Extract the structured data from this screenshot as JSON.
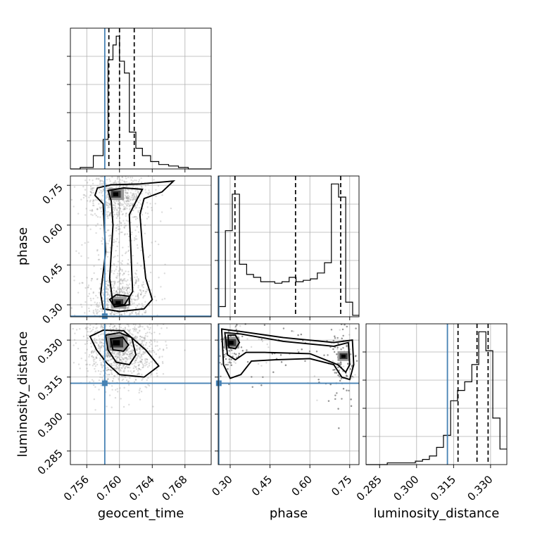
{
  "chart_data": {
    "type": "corner",
    "parameters": [
      "geocent_time",
      "phase",
      "luminosity_distance"
    ],
    "axis_labels": {
      "geocent_time": "geocent_time",
      "phase": "phase",
      "luminosity_distance": "luminosity_distance"
    },
    "ranges": {
      "geocent_time": [
        0.754,
        0.7712
      ],
      "phase": [
        0.255,
        0.785
      ],
      "luminosity_distance": [
        0.2795,
        0.3366
      ]
    },
    "ticks": {
      "geocent_time": [
        0.756,
        0.76,
        0.764,
        0.768
      ],
      "phase": [
        0.3,
        0.45,
        0.6,
        0.75
      ],
      "luminosity_distance": [
        0.285,
        0.3,
        0.315,
        0.33
      ]
    },
    "tick_labels": {
      "geocent_time": [
        "0.756",
        "0.760",
        "0.764",
        "0.768"
      ],
      "phase": [
        "0.30",
        "0.45",
        "0.60",
        "0.75"
      ],
      "luminosity_distance": [
        "0.285",
        "0.300",
        "0.315",
        "0.330"
      ]
    },
    "truths": {
      "geocent_time": 0.7582,
      "phase": 0.2571,
      "luminosity_distance": 0.3125
    },
    "quantiles": {
      "geocent_time": [
        0.7587,
        0.76,
        0.7618
      ],
      "phase": [
        0.318,
        0.546,
        0.716
      ],
      "luminosity_distance": [
        0.3168,
        0.3245,
        0.329
      ]
    },
    "histograms": {
      "geocent_time": {
        "bin_edges": [
          0.754,
          0.7552,
          0.7568,
          0.758,
          0.7586,
          0.7592,
          0.7596,
          0.76,
          0.7606,
          0.7612,
          0.762,
          0.7628,
          0.7638,
          0.7648,
          0.766,
          0.7672,
          0.7684,
          0.7696,
          0.7712
        ],
        "counts": [
          0,
          1,
          9,
          20,
          74,
          84,
          90,
          73,
          65,
          25,
          14,
          9,
          5,
          3,
          2,
          1,
          0,
          0
        ]
      },
      "phase": {
        "bin_edges": [
          0.255,
          0.282,
          0.308,
          0.335,
          0.362,
          0.388,
          0.415,
          0.442,
          0.468,
          0.495,
          0.522,
          0.548,
          0.575,
          0.602,
          0.628,
          0.655,
          0.681,
          0.708,
          0.735,
          0.761,
          0.785
        ],
        "counts": [
          7,
          59,
          84,
          36,
          29,
          27,
          24,
          24,
          23,
          24,
          27,
          24,
          25,
          26,
          30,
          37,
          91,
          82,
          10,
          1
        ]
      },
      "luminosity_distance": {
        "bin_edges": [
          0.2795,
          0.2824,
          0.2852,
          0.2881,
          0.2909,
          0.2938,
          0.2966,
          0.2995,
          0.3024,
          0.3052,
          0.3081,
          0.3109,
          0.3138,
          0.3166,
          0.3195,
          0.3224,
          0.3252,
          0.3281,
          0.3309,
          0.3338,
          0.3366
        ],
        "counts": [
          0,
          0,
          0,
          1,
          1,
          1,
          1,
          2,
          3,
          5,
          10,
          17,
          37,
          43,
          48,
          58,
          77,
          66,
          27,
          9
        ]
      }
    },
    "density_peaks": {
      "geocent_time_vs_phase": [
        [
          0.7596,
          0.717
        ],
        [
          0.7598,
          0.308
        ]
      ],
      "geocent_time_vs_luminosity_distance": [
        [
          0.7597,
          0.329
        ]
      ],
      "phase_vs_luminosity_distance": [
        [
          0.305,
          0.329
        ],
        [
          0.728,
          0.3235
        ]
      ]
    }
  }
}
